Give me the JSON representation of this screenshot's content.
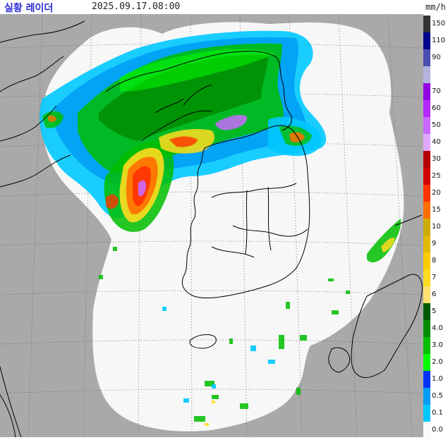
{
  "header": {
    "title": "실황 레이더",
    "timestamp": "2025.09.17.08:00",
    "unit": "mm/h"
  },
  "colors": {
    "background_outside": "#a9a9a9",
    "radar_coverage": "#f7f7f7",
    "coastline": "#000000",
    "grid": "#555555",
    "title": "#2b2bd8"
  },
  "legend": [
    {
      "label": "150",
      "color": "#333333"
    },
    {
      "label": "110",
      "color": "#000390"
    },
    {
      "label": "90",
      "color": "#4c4eb1"
    },
    {
      "label": "",
      "color": "#b3b4de"
    },
    {
      "label": "70",
      "color": "#9300e4"
    },
    {
      "label": "60",
      "color": "#b329ff"
    },
    {
      "label": "50",
      "color": "#c969ff"
    },
    {
      "label": "40",
      "color": "#e0a9ff"
    },
    {
      "label": "30",
      "color": "#b40000"
    },
    {
      "label": "25",
      "color": "#d20000"
    },
    {
      "label": "20",
      "color": "#ff3200"
    },
    {
      "label": "15",
      "color": "#ff6e00"
    },
    {
      "label": "10",
      "color": "#ccaa00"
    },
    {
      "label": "9",
      "color": "#e0b900"
    },
    {
      "label": "8",
      "color": "#f9cd00"
    },
    {
      "label": "7",
      "color": "#ffdc1f"
    },
    {
      "label": "6",
      "color": "#ffe16e"
    },
    {
      "label": "5",
      "color": "#005a00"
    },
    {
      "label": "4.0",
      "color": "#008c00"
    },
    {
      "label": "3.0",
      "color": "#00be00"
    },
    {
      "label": "2.0",
      "color": "#00ff00"
    },
    {
      "label": "1.0",
      "color": "#0033f5"
    },
    {
      "label": "0.5",
      "color": "#009bf5"
    },
    {
      "label": "0.1",
      "color": "#00c8ff"
    },
    {
      "label": "0.0",
      "color": "#fafafa"
    }
  ]
}
